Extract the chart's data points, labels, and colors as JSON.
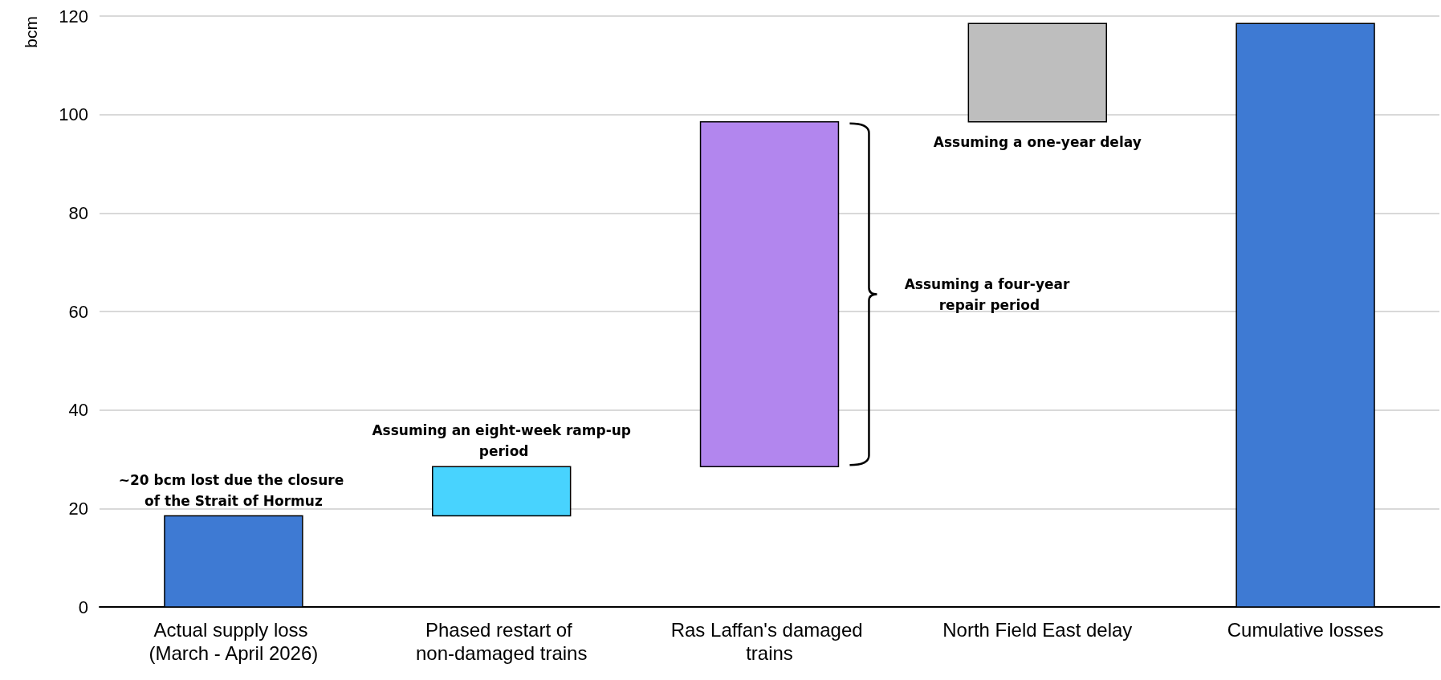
{
  "chart_data": {
    "type": "bar",
    "ylabel": "bcm",
    "categories": [
      "Actual supply loss (March - April 2026)",
      "Phased restart of non-damaged trains",
      "Ras Laffan's damaged trains",
      "North Field East delay",
      "Cumulative losses"
    ],
    "values": [
      18.5,
      10,
      70,
      20,
      118.5
    ],
    "base": [
      0,
      18.5,
      28.5,
      98.5,
      0
    ],
    "colors": [
      "#3e7ad3",
      "#48d3fe",
      "#b286ee",
      "#bebebe",
      "#3e7ad3"
    ],
    "ylim": [
      0,
      120
    ],
    "yticks": [
      0,
      20,
      40,
      60,
      80,
      100,
      120
    ],
    "grid": "y",
    "annotations": [
      {
        "text": "~20 bcm lost due the closure of the Strait of Hormuz",
        "x": "Actual supply loss (March - April 2026)",
        "y": 18.5
      },
      {
        "text": "Assuming an eight-week ramp-up period",
        "x": "Phased restart of non-damaged trains",
        "y": 28.5
      },
      "Assuming a four-year repair period",
      {
        "text": "Assuming a one-year delay",
        "x": "North Field East delay",
        "y": 98.5
      }
    ]
  }
}
